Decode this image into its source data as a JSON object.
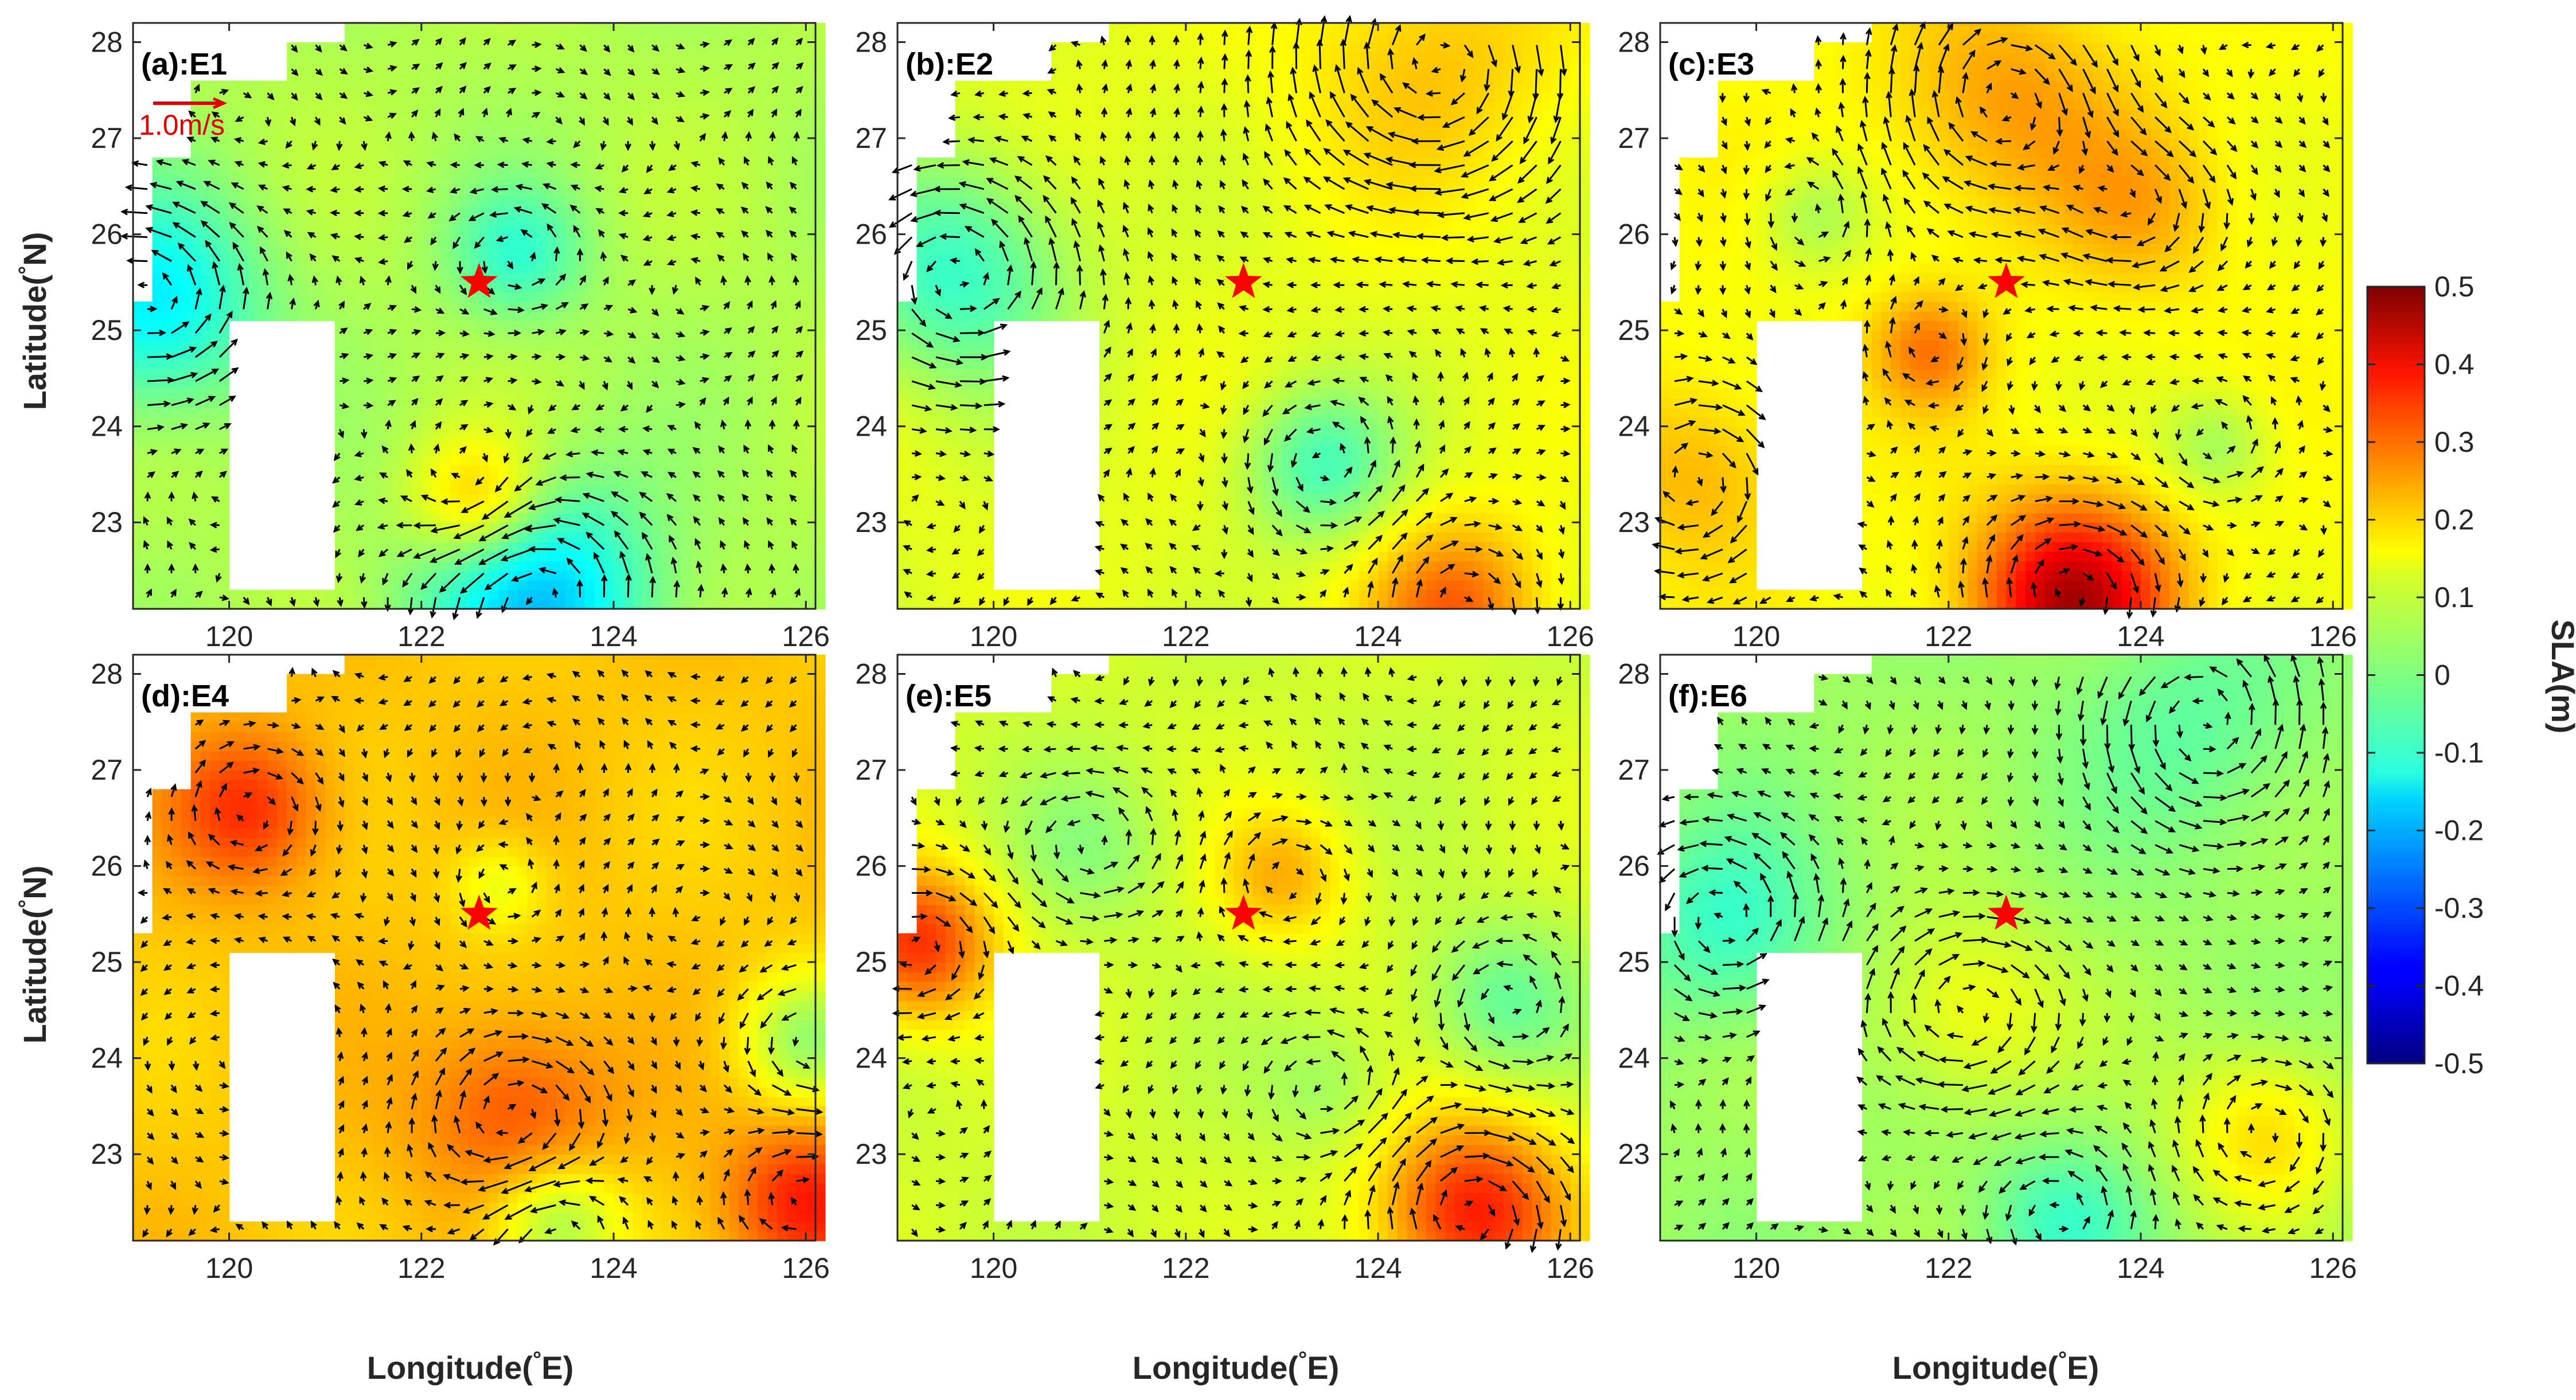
{
  "chart_data": {
    "type": "heatmap",
    "colorbar": {
      "label": "SLA(m)",
      "range": [
        -0.5,
        0.5
      ],
      "ticks": [
        "0.5",
        "0.4",
        "0.3",
        "0.2",
        "0.1",
        "0",
        "-0.1",
        "-0.2",
        "-0.3",
        "-0.4",
        "-0.5"
      ],
      "colormap": "jet"
    },
    "axes": {
      "xlabel": "Longitude(°E)",
      "ylabel": "Latitude(°N)",
      "xlim": [
        119.0,
        126.1
      ],
      "ylim": [
        22.1,
        28.2
      ],
      "xticks": [
        "120",
        "122",
        "124",
        "126"
      ],
      "yticks": [
        "28",
        "27",
        "26",
        "25",
        "24",
        "23"
      ]
    },
    "reference_vector": {
      "label": "1.0m/s",
      "speed": 1.0,
      "color": "#e00000"
    },
    "marker": {
      "symbol": "star",
      "lon": 122.6,
      "lat": 25.5,
      "color": "#ff0000"
    },
    "panels": [
      {
        "label": "(a):E1",
        "sla_base": 0.05,
        "features": [
          {
            "lon": 123.2,
            "lat": 22.2,
            "sla": -0.18,
            "r": 1.2,
            "type": "cyclonic"
          },
          {
            "lon": 119.2,
            "lat": 25.3,
            "sla": -0.14,
            "r": 1.1,
            "type": "cyclonic"
          },
          {
            "lon": 123.0,
            "lat": 25.8,
            "sla": -0.07,
            "r": 0.7,
            "type": "cyclonic"
          },
          {
            "lon": 122.6,
            "lat": 23.2,
            "sla": 0.22,
            "r": 0.7,
            "type": "anticyclonic"
          }
        ]
      },
      {
        "label": "(b):E2",
        "sla_base": 0.1,
        "features": [
          {
            "lon": 124.6,
            "lat": 27.8,
            "sla": 0.18,
            "r": 1.5,
            "type": "anticyclonic"
          },
          {
            "lon": 119.6,
            "lat": 25.6,
            "sla": -0.07,
            "r": 1.2,
            "type": "cyclonic"
          },
          {
            "lon": 123.4,
            "lat": 23.6,
            "sla": -0.05,
            "r": 0.8,
            "type": "cyclonic"
          },
          {
            "lon": 124.8,
            "lat": 22.1,
            "sla": 0.28,
            "r": 0.9,
            "type": "anticyclonic"
          }
        ]
      },
      {
        "label": "(c):E3",
        "sla_base": 0.12,
        "features": [
          {
            "lon": 123.3,
            "lat": 22.2,
            "sla": 0.45,
            "r": 1.0,
            "type": "anticyclonic"
          },
          {
            "lon": 122.6,
            "lat": 27.4,
            "sla": 0.22,
            "r": 1.2,
            "type": "anticyclonic"
          },
          {
            "lon": 124.0,
            "lat": 26.3,
            "sla": 0.2,
            "r": 0.9,
            "type": "anticyclonic"
          },
          {
            "lon": 121.8,
            "lat": 24.8,
            "sla": 0.25,
            "r": 0.6,
            "type": "anticyclonic"
          },
          {
            "lon": 119.4,
            "lat": 23.5,
            "sla": 0.2,
            "r": 1.0,
            "type": "anticyclonic"
          },
          {
            "lon": 124.8,
            "lat": 23.8,
            "sla": 0.03,
            "r": 0.6,
            "type": "cyclonic"
          },
          {
            "lon": 120.6,
            "lat": 26.2,
            "sla": 0.04,
            "r": 0.6,
            "type": "cyclonic"
          }
        ]
      },
      {
        "label": "(d):E4",
        "sla_base": 0.18,
        "features": [
          {
            "lon": 120.2,
            "lat": 26.6,
            "sla": 0.33,
            "r": 0.8,
            "type": "anticyclonic"
          },
          {
            "lon": 123.0,
            "lat": 23.4,
            "sla": 0.3,
            "r": 1.0,
            "type": "anticyclonic"
          },
          {
            "lon": 126.0,
            "lat": 22.5,
            "sla": 0.35,
            "r": 0.8,
            "type": "anticyclonic"
          },
          {
            "lon": 123.4,
            "lat": 22.3,
            "sla": 0.02,
            "r": 0.7,
            "type": "cyclonic"
          },
          {
            "lon": 126.0,
            "lat": 24.2,
            "sla": 0.03,
            "r": 0.7,
            "type": "cyclonic"
          },
          {
            "lon": 122.8,
            "lat": 25.8,
            "sla": 0.1,
            "r": 0.5,
            "type": "cyclonic"
          }
        ]
      },
      {
        "label": "(e):E5",
        "sla_base": 0.08,
        "features": [
          {
            "lon": 119.2,
            "lat": 25.2,
            "sla": 0.33,
            "r": 0.8,
            "type": "anticyclonic"
          },
          {
            "lon": 125.0,
            "lat": 22.4,
            "sla": 0.35,
            "r": 1.0,
            "type": "anticyclonic"
          },
          {
            "lon": 123.0,
            "lat": 25.9,
            "sla": 0.2,
            "r": 0.7,
            "type": "anticyclonic"
          },
          {
            "lon": 121.0,
            "lat": 26.2,
            "sla": 0.02,
            "r": 0.8,
            "type": "cyclonic"
          },
          {
            "lon": 125.3,
            "lat": 24.6,
            "sla": -0.02,
            "r": 0.8,
            "type": "cyclonic"
          },
          {
            "lon": 123.5,
            "lat": 23.7,
            "sla": 0.03,
            "r": 0.7,
            "type": "cyclonic"
          }
        ]
      },
      {
        "label": "(f):E6",
        "sla_base": 0.03,
        "features": [
          {
            "lon": 119.7,
            "lat": 25.4,
            "sla": -0.07,
            "r": 1.0,
            "type": "cyclonic"
          },
          {
            "lon": 123.2,
            "lat": 22.3,
            "sla": -0.06,
            "r": 0.8,
            "type": "cyclonic"
          },
          {
            "lon": 124.6,
            "lat": 27.5,
            "sla": -0.03,
            "r": 1.2,
            "type": "cyclonic"
          },
          {
            "lon": 122.2,
            "lat": 24.5,
            "sla": 0.12,
            "r": 1.0,
            "type": "anticyclonic"
          },
          {
            "lon": 125.3,
            "lat": 23.2,
            "sla": 0.16,
            "r": 0.9,
            "type": "anticyclonic"
          }
        ]
      }
    ]
  }
}
